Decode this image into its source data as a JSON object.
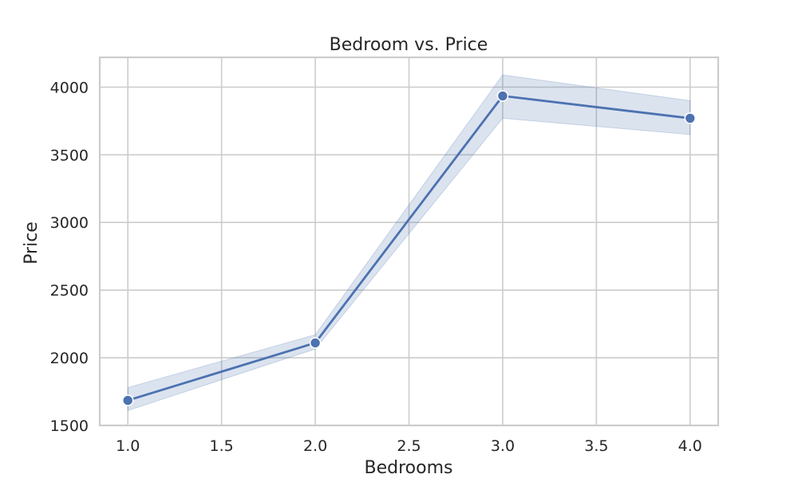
{
  "chart_data": {
    "type": "line",
    "title": "Bedroom vs. Price",
    "xlabel": "Bedrooms",
    "ylabel": "Price",
    "xlim": [
      0.85,
      4.15
    ],
    "ylim": [
      1500,
      4220
    ],
    "xticks": [
      "1.0",
      "1.5",
      "2.0",
      "2.5",
      "3.0",
      "3.5",
      "4.0"
    ],
    "yticks": [
      "1500",
      "2000",
      "2500",
      "3000",
      "3500",
      "4000"
    ],
    "grid": true,
    "series": [
      {
        "x": [
          1.0,
          2.0,
          3.0,
          4.0
        ],
        "y": [
          1685,
          2110,
          3935,
          3770
        ],
        "ci_low": [
          1610,
          2065,
          3770,
          3650
        ],
        "ci_high": [
          1780,
          2170,
          4090,
          3900
        ],
        "color": "#4c72b0",
        "band_color": "#4c72b0",
        "marker": "circle"
      }
    ]
  }
}
